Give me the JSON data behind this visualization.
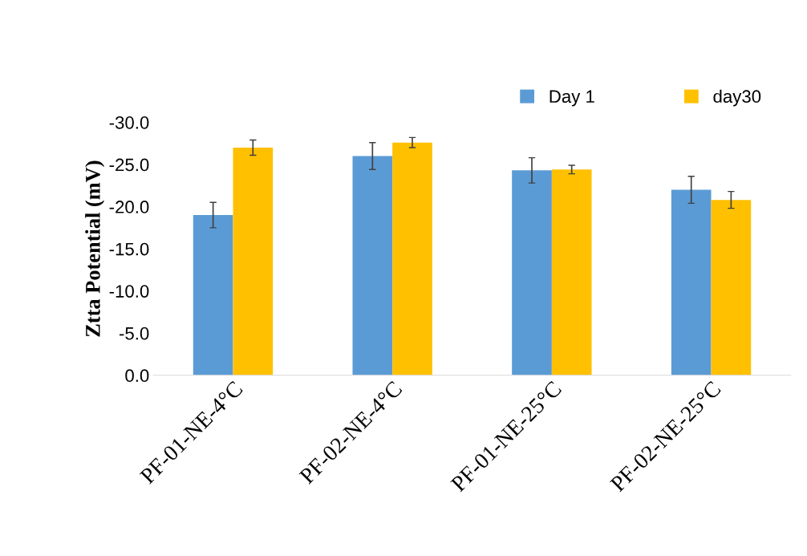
{
  "chart_data": {
    "type": "bar",
    "ylabel": "Ztta Potential (mV)",
    "categories": [
      "PF-01-NE-4°C",
      "PF-02-NE-4°C",
      "PF-01-NE-25°C",
      "PF-02-NE-25°C"
    ],
    "series": [
      {
        "name": "Day 1",
        "color": "#5b9bd5",
        "values": [
          -19.0,
          -26.0,
          -24.3,
          -22.0
        ],
        "errors": [
          1.5,
          1.6,
          1.5,
          1.6
        ]
      },
      {
        "name": "day30",
        "color": "#ffc000",
        "values": [
          -27.0,
          -27.6,
          -24.4,
          -20.8
        ],
        "errors": [
          0.9,
          0.6,
          0.5,
          1.0
        ]
      }
    ],
    "ylim": [
      0,
      -30
    ],
    "yticks": [
      {
        "value": 0,
        "label": "0.0"
      },
      {
        "value": -5,
        "label": "-5.0"
      },
      {
        "value": -10,
        "label": "-10.0"
      },
      {
        "value": -15,
        "label": "-15.0"
      },
      {
        "value": -20,
        "label": "-20.0"
      },
      {
        "value": -25,
        "label": "-25.0"
      },
      {
        "value": -30,
        "label": "-30.0"
      }
    ],
    "grid": false,
    "legend": "top right"
  }
}
